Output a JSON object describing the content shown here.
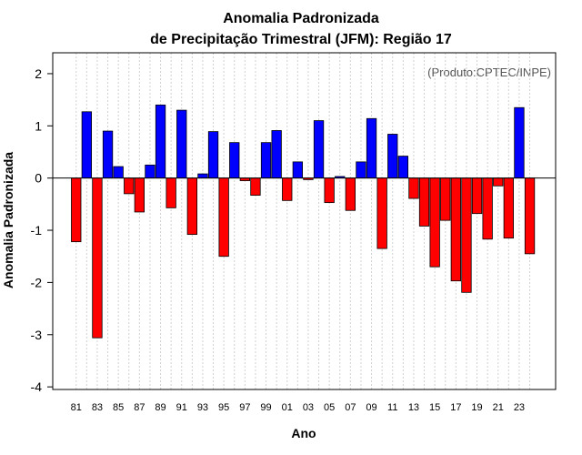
{
  "chart_data": {
    "type": "bar",
    "title_lines": [
      "Anomalia Padronizada",
      "de Precipitação Trimestral (JFM): Região 17"
    ],
    "xlabel": "Ano",
    "ylabel": "Anomalia Padronizada",
    "annotation": "(Produto:CPTEC/INPE)",
    "ylim": [
      -4.05,
      2.4
    ],
    "yticks": [
      -4,
      -3,
      -2,
      -1,
      0,
      1,
      2
    ],
    "grid": "vertical dotted",
    "positive_color": "#0000ff",
    "negative_color": "#ff0000",
    "categories": [
      "1981",
      "1982",
      "1983",
      "1984",
      "1985",
      "1986",
      "1987",
      "1988",
      "1989",
      "1990",
      "1991",
      "1992",
      "1993",
      "1994",
      "1995",
      "1996",
      "1997",
      "1998",
      "1999",
      "2000",
      "2001",
      "2002",
      "2003",
      "2004",
      "2005",
      "2006",
      "2007",
      "2008",
      "2009",
      "2010",
      "2011",
      "2012",
      "2013",
      "2014",
      "2015",
      "2016",
      "2017",
      "2018",
      "2019",
      "2020",
      "2021",
      "2022",
      "2023",
      "2024"
    ],
    "values": [
      -1.22,
      1.27,
      -3.06,
      0.9,
      0.22,
      -0.3,
      -0.65,
      0.25,
      1.4,
      -0.57,
      1.3,
      -1.08,
      0.08,
      0.89,
      -1.5,
      0.68,
      -0.05,
      -0.33,
      0.68,
      0.91,
      -0.43,
      0.31,
      -0.03,
      1.1,
      -0.47,
      0.03,
      -0.62,
      0.31,
      1.14,
      -1.35,
      0.84,
      0.42,
      -0.39,
      -0.92,
      -1.7,
      -0.81,
      -1.97,
      -2.19,
      -0.68,
      -1.17,
      -0.15,
      -1.15,
      1.35,
      -1.45
    ],
    "xtick_labels": [
      "81",
      "83",
      "85",
      "87",
      "89",
      "91",
      "93",
      "95",
      "97",
      "99",
      "01",
      "03",
      "05",
      "07",
      "09",
      "11",
      "13",
      "15",
      "17",
      "19",
      "21",
      "23"
    ]
  }
}
